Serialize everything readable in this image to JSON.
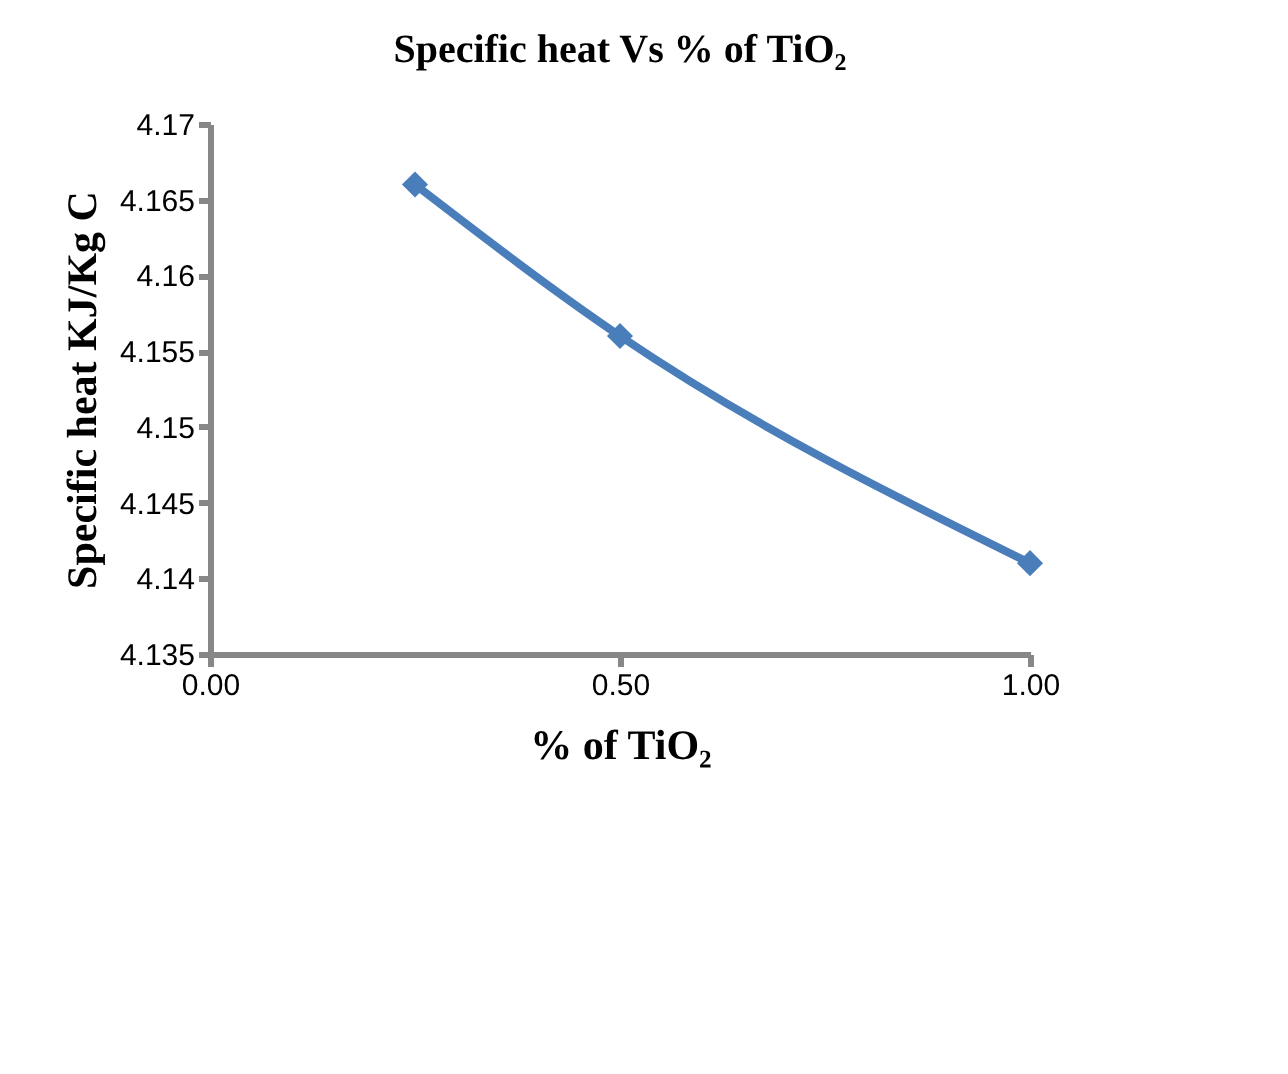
{
  "chart_data": {
    "type": "line",
    "title": "Specific heat Vs % of TiO₂",
    "xlabel": "% of TiO₂",
    "ylabel": "Specific heat KJ/Kg C",
    "x": [
      0.25,
      0.5,
      1.0
    ],
    "series": [
      {
        "color": "#4a7ebb",
        "values": [
          4.166,
          4.156,
          4.141
        ]
      }
    ],
    "xlim": [
      0,
      1
    ],
    "xticks": [
      {
        "value": 0,
        "label": "0.00"
      },
      {
        "value": 0.5,
        "label": "0.50"
      },
      {
        "value": 1,
        "label": "1.00"
      }
    ],
    "ylim": [
      4.135,
      4.17
    ],
    "yticks": [
      4.135,
      4.14,
      4.145,
      4.15,
      4.155,
      4.16,
      4.165,
      4.17
    ],
    "grid": false,
    "marker": "diamond",
    "line_style": "solid"
  }
}
